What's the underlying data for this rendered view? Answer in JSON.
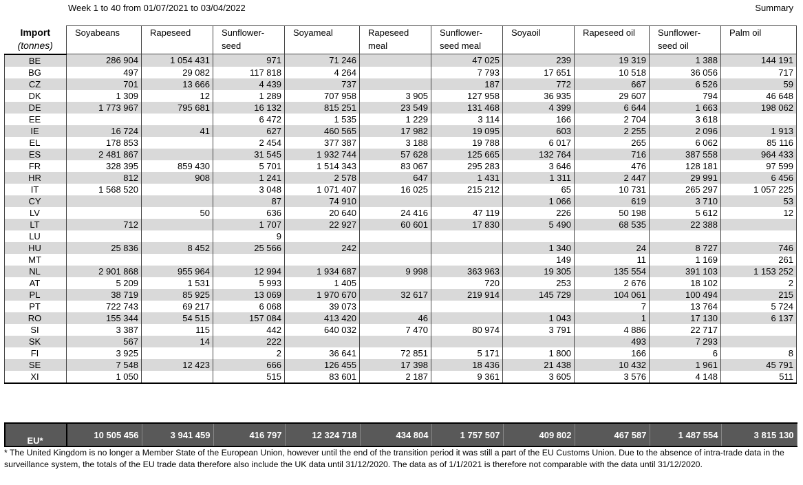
{
  "header": {
    "subtitle": "Week 1 to 40 from 01/07/2021 to 03/04/2022",
    "summary": "Summary"
  },
  "table": {
    "corner_title": "Import",
    "corner_unit": "(tonnes)",
    "columns": [
      "Soyabeans",
      "Rapeseed",
      "Sunflower-\nseed",
      "Soyameal",
      "Rapeseed\nmeal",
      "Sunflower-\nseed meal",
      "Soyaoil",
      "Rapeseed oil",
      "Sunflower-\nseed oil",
      "Palm oil"
    ],
    "rows": [
      {
        "country": "BE",
        "values": [
          "286 904",
          "1 054 431",
          "971",
          "71 246",
          "",
          "47 025",
          "239",
          "19 319",
          "1 388",
          "144 191"
        ]
      },
      {
        "country": "BG",
        "values": [
          "497",
          "29 082",
          "117 818",
          "4 264",
          "",
          "7 793",
          "17 651",
          "10 518",
          "36 056",
          "717"
        ]
      },
      {
        "country": "CZ",
        "values": [
          "701",
          "13 666",
          "4 439",
          "737",
          "",
          "187",
          "772",
          "667",
          "6 526",
          "59"
        ]
      },
      {
        "country": "DK",
        "values": [
          "1 309",
          "12",
          "1 289",
          "707 958",
          "3 905",
          "127 958",
          "36 935",
          "29 607",
          "794",
          "46 648"
        ]
      },
      {
        "country": "DE",
        "values": [
          "1 773 967",
          "795 681",
          "16 132",
          "815 251",
          "23 549",
          "131 468",
          "4 399",
          "6 644",
          "1 663",
          "198 062"
        ]
      },
      {
        "country": "EE",
        "values": [
          "",
          "",
          "6 472",
          "1 535",
          "1 229",
          "3 114",
          "166",
          "2 704",
          "3 618",
          ""
        ]
      },
      {
        "country": "IE",
        "values": [
          "16 724",
          "41",
          "627",
          "460 565",
          "17 982",
          "19 095",
          "603",
          "2 255",
          "2 096",
          "1 913"
        ]
      },
      {
        "country": "EL",
        "values": [
          "178 853",
          "",
          "2 454",
          "377 387",
          "3 188",
          "19 788",
          "6 017",
          "265",
          "6 062",
          "85 116"
        ]
      },
      {
        "country": "ES",
        "values": [
          "2 481 867",
          "",
          "31 545",
          "1 932 744",
          "57 628",
          "125 665",
          "132 764",
          "716",
          "387 558",
          "964 433"
        ]
      },
      {
        "country": "FR",
        "values": [
          "328 395",
          "859 430",
          "5 701",
          "1 514 343",
          "83 067",
          "295 283",
          "3 646",
          "476",
          "128 181",
          "97 599"
        ]
      },
      {
        "country": "HR",
        "values": [
          "812",
          "908",
          "1 241",
          "2 578",
          "647",
          "1 431",
          "1 311",
          "2 447",
          "29 991",
          "6 456"
        ]
      },
      {
        "country": "IT",
        "values": [
          "1 568 520",
          "",
          "3 048",
          "1 071 407",
          "16 025",
          "215 212",
          "65",
          "10 731",
          "265 297",
          "1 057 225"
        ]
      },
      {
        "country": "CY",
        "values": [
          "",
          "",
          "87",
          "74 910",
          "",
          "",
          "1 066",
          "619",
          "3 710",
          "53"
        ]
      },
      {
        "country": "LV",
        "values": [
          "",
          "50",
          "636",
          "20 640",
          "24 416",
          "47 119",
          "226",
          "50 198",
          "5 612",
          "12"
        ]
      },
      {
        "country": "LT",
        "values": [
          "712",
          "",
          "1 707",
          "22 927",
          "60 601",
          "17 830",
          "5 490",
          "68 535",
          "22 388",
          ""
        ]
      },
      {
        "country": "LU",
        "values": [
          "",
          "",
          "9",
          "",
          "",
          "",
          "",
          "",
          "",
          ""
        ]
      },
      {
        "country": "HU",
        "values": [
          "25 836",
          "8 452",
          "25 566",
          "242",
          "",
          "",
          "1 340",
          "24",
          "8 727",
          "746"
        ]
      },
      {
        "country": "MT",
        "values": [
          "",
          "",
          "",
          "",
          "",
          "",
          "149",
          "11",
          "1 169",
          "261"
        ]
      },
      {
        "country": "NL",
        "values": [
          "2 901 868",
          "955 964",
          "12 994",
          "1 934 687",
          "9 998",
          "363 963",
          "19 305",
          "135 554",
          "391 103",
          "1 153 252"
        ]
      },
      {
        "country": "AT",
        "values": [
          "5 209",
          "1 531",
          "5 993",
          "1 405",
          "",
          "720",
          "253",
          "2 676",
          "18 102",
          "2"
        ]
      },
      {
        "country": "PL",
        "values": [
          "38 719",
          "85 925",
          "13 069",
          "1 970 670",
          "32 617",
          "219 914",
          "145 729",
          "104 061",
          "100 494",
          "215"
        ]
      },
      {
        "country": "PT",
        "values": [
          "722 743",
          "69 217",
          "6 068",
          "39 073",
          "",
          "",
          "",
          "7",
          "13 764",
          "5 724"
        ]
      },
      {
        "country": "RO",
        "values": [
          "155 344",
          "54 515",
          "157 084",
          "413 420",
          "46",
          "",
          "1 043",
          "1",
          "17 130",
          "6 137"
        ]
      },
      {
        "country": "SI",
        "values": [
          "3 387",
          "115",
          "442",
          "640 032",
          "7 470",
          "80 974",
          "3 791",
          "4 886",
          "22 717",
          ""
        ]
      },
      {
        "country": "SK",
        "values": [
          "567",
          "14",
          "222",
          "",
          "",
          "",
          "",
          "493",
          "7 293",
          ""
        ]
      },
      {
        "country": "FI",
        "values": [
          "3 925",
          "",
          "2",
          "36 641",
          "72 851",
          "5 171",
          "1 800",
          "166",
          "6",
          "8"
        ]
      },
      {
        "country": "SE",
        "values": [
          "7 548",
          "12 423",
          "666",
          "126 455",
          "17 398",
          "18 436",
          "21 438",
          "10 432",
          "1 961",
          "45 791"
        ]
      },
      {
        "country": "XI",
        "values": [
          "1 050",
          "",
          "515",
          "83 601",
          "2 187",
          "9 361",
          "3 605",
          "3 576",
          "4 148",
          "511"
        ]
      }
    ],
    "total": {
      "label": "EU*",
      "values": [
        "10 505 456",
        "3 941 459",
        "416 797",
        "12 324 718",
        "434 804",
        "1 757 507",
        "409 802",
        "467 587",
        "1 487 554",
        "3 815 130"
      ]
    }
  },
  "footnote": "* The United Kingdom is no longer a Member State of the European Union, however until the end of the transition period it was still a part of the EU Customs Union. Due to the absence of intra-trade data in the surveillance system, the totals of the EU trade data  therefore also include the UK data until 31/12/2020. The data as of 1/1/2021 is therefore not comparable with the data until 31/12/2020."
}
